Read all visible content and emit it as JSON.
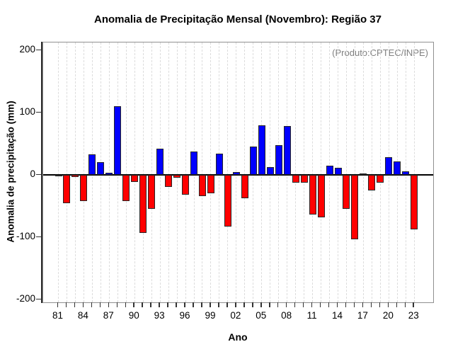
{
  "chart_data": {
    "type": "bar",
    "title": "Anomalia de Precipitação Mensal (Novembro): Região 37",
    "xlabel": "Ano",
    "ylabel": "Anomalia de precipitação (mm)",
    "annotation": "(Produto:CPTEC/INPE)",
    "ylim": [
      -200,
      200
    ],
    "yticks": [
      200,
      100,
      0,
      -100,
      -200
    ],
    "xtick_labels": [
      "81",
      "84",
      "87",
      "90",
      "93",
      "96",
      "99",
      "02",
      "05",
      "08",
      "11",
      "14",
      "17",
      "20",
      "23"
    ],
    "xtick_label_every": 3,
    "grid": "vertical-dashed",
    "legend": "none",
    "categories": [
      "81",
      "82",
      "83",
      "84",
      "85",
      "86",
      "87",
      "88",
      "89",
      "90",
      "91",
      "92",
      "93",
      "94",
      "95",
      "96",
      "97",
      "98",
      "99",
      "00",
      "01",
      "02",
      "03",
      "04",
      "05",
      "06",
      "07",
      "08",
      "09",
      "10",
      "11",
      "12",
      "13",
      "14",
      "15",
      "16",
      "17",
      "18",
      "19",
      "20",
      "21",
      "22",
      "23"
    ],
    "values": [
      -2,
      -46,
      -3,
      -42,
      33,
      20,
      3,
      110,
      -42,
      -11,
      -93,
      -55,
      42,
      -19,
      -5,
      -32,
      37,
      -34,
      -29,
      34,
      -83,
      4,
      -37,
      45,
      79,
      13,
      48,
      78,
      -12,
      -12,
      -64,
      -68,
      15,
      11,
      -55,
      -103,
      1,
      -25,
      -12,
      28,
      22,
      6,
      -88
    ],
    "colors": {
      "positive": "#0000ff",
      "negative": "#ff0000",
      "bar_border": "#262626",
      "grid": "#dcdcdc",
      "zero_line": "#000000",
      "axis": "#2b2b2b",
      "frame": "#909090",
      "annotation_text": "#808080"
    }
  }
}
